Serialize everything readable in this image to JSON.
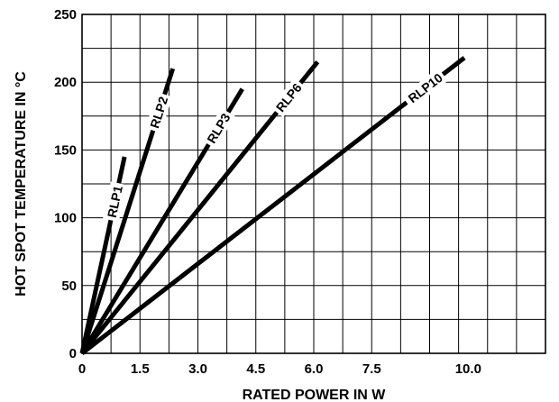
{
  "chart_data": {
    "type": "line",
    "title": "",
    "xlabel": "RATED POWER IN W",
    "ylabel": "HOT SPOT TEMPERATURE IN °C",
    "xlim": [
      0,
      12
    ],
    "ylim": [
      0,
      250
    ],
    "x_tick_values": [
      0,
      1.5,
      3.0,
      4.5,
      6.0,
      7.5,
      10.0
    ],
    "x_tick_labels": [
      "0",
      "1.5",
      "3.0",
      "4.5",
      "6.0",
      "7.5",
      "10.0"
    ],
    "y_tick_values": [
      0,
      50,
      100,
      150,
      200,
      250
    ],
    "y_tick_labels": [
      "0",
      "50",
      "100",
      "150",
      "200",
      "250"
    ],
    "grid": true,
    "grid_x_step": 0.75,
    "grid_y_step": 25,
    "legend": "none",
    "series": [
      {
        "name": "RLP1",
        "x": [
          0,
          1.1
        ],
        "y": [
          0,
          145
        ]
      },
      {
        "name": "RLP2",
        "x": [
          0,
          2.35
        ],
        "y": [
          0,
          210
        ]
      },
      {
        "name": "RLP3",
        "x": [
          0,
          4.15
        ],
        "y": [
          0,
          195
        ]
      },
      {
        "name": "RLP6",
        "x": [
          0,
          6.1
        ],
        "y": [
          0,
          215
        ]
      },
      {
        "name": "RLP10",
        "x": [
          0,
          9.9
        ],
        "y": [
          0,
          218
        ]
      }
    ]
  }
}
